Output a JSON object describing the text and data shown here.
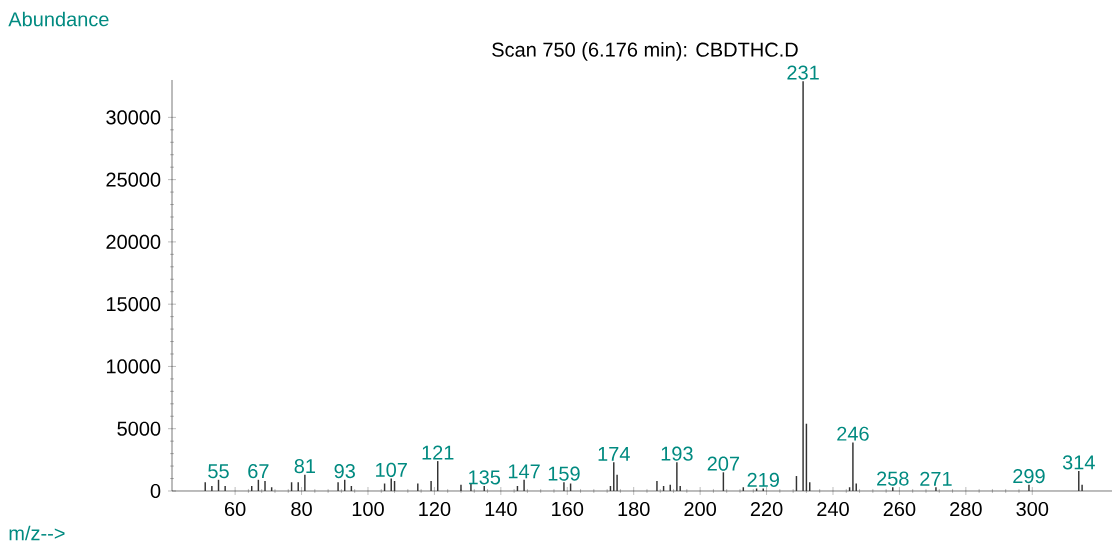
{
  "chart_data": {
    "type": "bar",
    "title": "Scan 750 (6.176 min): CBDTHC.D",
    "xlabel": "m/z-->",
    "ylabel": "Abundance",
    "x": [
      51,
      53,
      55,
      57,
      65,
      67,
      69,
      71,
      77,
      79,
      81,
      91,
      93,
      95,
      105,
      107,
      108,
      115,
      119,
      121,
      128,
      131,
      135,
      145,
      147,
      159,
      161,
      173,
      174,
      175,
      187,
      189,
      191,
      193,
      194,
      207,
      213,
      217,
      219,
      229,
      231,
      232,
      233,
      245,
      246,
      247,
      258,
      271,
      299,
      314,
      315
    ],
    "values": [
      700,
      400,
      900,
      400,
      400,
      900,
      800,
      300,
      700,
      700,
      1300,
      700,
      900,
      400,
      600,
      1000,
      800,
      600,
      800,
      2400,
      500,
      600,
      400,
      400,
      900,
      700,
      600,
      400,
      2300,
      1300,
      800,
      400,
      500,
      2300,
      400,
      1500,
      300,
      200,
      200,
      1200,
      32900,
      5400,
      700,
      300,
      3900,
      600,
      300,
      300,
      500,
      1600,
      500
    ],
    "color": "#333333",
    "xlim": [
      41,
      324
    ],
    "ylim": [
      0,
      33000
    ],
    "xticks": [
      60,
      80,
      100,
      120,
      140,
      160,
      180,
      200,
      220,
      240,
      260,
      280,
      300
    ],
    "yticks": [
      0,
      5000,
      10000,
      15000,
      20000,
      25000,
      30000
    ],
    "grid": false,
    "annotations": [
      {
        "text": "55",
        "x": 55,
        "y": 900
      },
      {
        "text": "67",
        "x": 67,
        "y": 900
      },
      {
        "text": "81",
        "x": 81,
        "y": 1300
      },
      {
        "text": "93",
        "x": 93,
        "y": 900
      },
      {
        "text": "107",
        "x": 107,
        "y": 1000
      },
      {
        "text": "121",
        "x": 121,
        "y": 2400
      },
      {
        "text": "135",
        "x": 135,
        "y": 400
      },
      {
        "text": "147",
        "x": 147,
        "y": 900
      },
      {
        "text": "159",
        "x": 159,
        "y": 700
      },
      {
        "text": "174",
        "x": 174,
        "y": 2300
      },
      {
        "text": "193",
        "x": 193,
        "y": 2300
      },
      {
        "text": "207",
        "x": 207,
        "y": 1500
      },
      {
        "text": "219",
        "x": 219,
        "y": 200
      },
      {
        "text": "231",
        "x": 231,
        "y": 32900
      },
      {
        "text": "246",
        "x": 246,
        "y": 3900
      },
      {
        "text": "258",
        "x": 258,
        "y": 300
      },
      {
        "text": "271",
        "x": 271,
        "y": 300
      },
      {
        "text": "299",
        "x": 299,
        "y": 500
      },
      {
        "text": "314",
        "x": 314,
        "y": 1600
      }
    ]
  }
}
